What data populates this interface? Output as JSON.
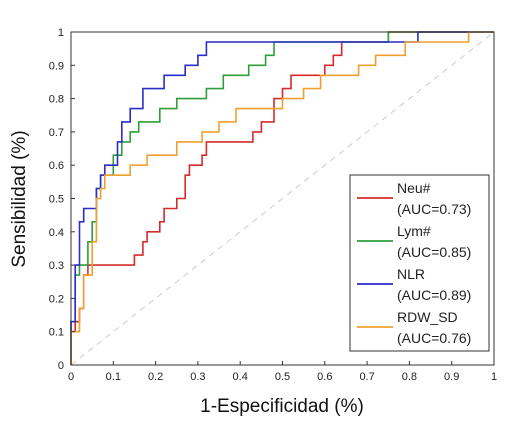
{
  "chart_data": {
    "type": "line",
    "title": "",
    "xlabel": "1-Especificidad (%)",
    "ylabel": "Sensibilidad (%)",
    "xlim": [
      0,
      1
    ],
    "ylim": [
      0,
      1
    ],
    "xticks": [
      "0",
      "0.1",
      "0.2",
      "0.3",
      "0.4",
      "0.5",
      "0.6",
      "0.7",
      "0.8",
      "0.9",
      "1"
    ],
    "yticks": [
      "0",
      "0.1",
      "0.2",
      "0.3",
      "0.4",
      "0.5",
      "0.6",
      "0.7",
      "0.8",
      "0.9",
      "1"
    ],
    "grid": false,
    "legend_position": "bottom-right",
    "reference_line": {
      "style": "dashed",
      "color": "#cccccc",
      "points": [
        [
          0,
          0
        ],
        [
          1,
          1
        ]
      ]
    },
    "series": [
      {
        "name": "Neu#",
        "auc_label": "(AUC=0.73)",
        "color": "#d62b2b",
        "points": [
          [
            0,
            0
          ],
          [
            0,
            0.1
          ],
          [
            0.01,
            0.1
          ],
          [
            0.01,
            0.13
          ],
          [
            0.02,
            0.13
          ],
          [
            0.02,
            0.17
          ],
          [
            0.03,
            0.17
          ],
          [
            0.03,
            0.27
          ],
          [
            0.04,
            0.27
          ],
          [
            0.04,
            0.3
          ],
          [
            0.15,
            0.3
          ],
          [
            0.15,
            0.33
          ],
          [
            0.17,
            0.33
          ],
          [
            0.17,
            0.37
          ],
          [
            0.18,
            0.37
          ],
          [
            0.18,
            0.4
          ],
          [
            0.21,
            0.4
          ],
          [
            0.21,
            0.43
          ],
          [
            0.22,
            0.43
          ],
          [
            0.22,
            0.47
          ],
          [
            0.25,
            0.47
          ],
          [
            0.25,
            0.5
          ],
          [
            0.27,
            0.5
          ],
          [
            0.27,
            0.57
          ],
          [
            0.28,
            0.57
          ],
          [
            0.28,
            0.6
          ],
          [
            0.31,
            0.6
          ],
          [
            0.31,
            0.63
          ],
          [
            0.32,
            0.63
          ],
          [
            0.32,
            0.67
          ],
          [
            0.43,
            0.67
          ],
          [
            0.43,
            0.7
          ],
          [
            0.45,
            0.7
          ],
          [
            0.45,
            0.73
          ],
          [
            0.48,
            0.73
          ],
          [
            0.48,
            0.8
          ],
          [
            0.5,
            0.8
          ],
          [
            0.5,
            0.83
          ],
          [
            0.52,
            0.83
          ],
          [
            0.52,
            0.87
          ],
          [
            0.6,
            0.87
          ],
          [
            0.6,
            0.9
          ],
          [
            0.62,
            0.9
          ],
          [
            0.62,
            0.93
          ],
          [
            0.64,
            0.93
          ],
          [
            0.64,
            0.97
          ],
          [
            0.75,
            0.97
          ],
          [
            0.75,
            1
          ],
          [
            1,
            1
          ]
        ]
      },
      {
        "name": "Lym#",
        "auc_label": "(AUC=0.85)",
        "color": "#2e9e3a",
        "points": [
          [
            0,
            0
          ],
          [
            0,
            0.13
          ],
          [
            0.01,
            0.13
          ],
          [
            0.01,
            0.27
          ],
          [
            0.02,
            0.27
          ],
          [
            0.02,
            0.3
          ],
          [
            0.04,
            0.3
          ],
          [
            0.04,
            0.37
          ],
          [
            0.05,
            0.37
          ],
          [
            0.05,
            0.43
          ],
          [
            0.06,
            0.43
          ],
          [
            0.06,
            0.53
          ],
          [
            0.07,
            0.53
          ],
          [
            0.07,
            0.57
          ],
          [
            0.1,
            0.57
          ],
          [
            0.1,
            0.63
          ],
          [
            0.12,
            0.63
          ],
          [
            0.12,
            0.67
          ],
          [
            0.14,
            0.67
          ],
          [
            0.14,
            0.7
          ],
          [
            0.16,
            0.7
          ],
          [
            0.16,
            0.73
          ],
          [
            0.21,
            0.73
          ],
          [
            0.21,
            0.77
          ],
          [
            0.25,
            0.77
          ],
          [
            0.25,
            0.8
          ],
          [
            0.32,
            0.8
          ],
          [
            0.32,
            0.83
          ],
          [
            0.36,
            0.83
          ],
          [
            0.36,
            0.87
          ],
          [
            0.42,
            0.87
          ],
          [
            0.42,
            0.9
          ],
          [
            0.46,
            0.9
          ],
          [
            0.46,
            0.93
          ],
          [
            0.48,
            0.93
          ],
          [
            0.48,
            0.97
          ],
          [
            0.75,
            0.97
          ],
          [
            0.75,
            1
          ],
          [
            1,
            1
          ]
        ]
      },
      {
        "name": "NLR",
        "auc_label": "(AUC=0.89)",
        "color": "#2a2ccc",
        "points": [
          [
            0,
            0
          ],
          [
            0,
            0.13
          ],
          [
            0.01,
            0.13
          ],
          [
            0.01,
            0.3
          ],
          [
            0.02,
            0.3
          ],
          [
            0.02,
            0.43
          ],
          [
            0.03,
            0.43
          ],
          [
            0.03,
            0.47
          ],
          [
            0.06,
            0.47
          ],
          [
            0.06,
            0.53
          ],
          [
            0.07,
            0.53
          ],
          [
            0.07,
            0.57
          ],
          [
            0.08,
            0.57
          ],
          [
            0.08,
            0.6
          ],
          [
            0.11,
            0.6
          ],
          [
            0.11,
            0.67
          ],
          [
            0.12,
            0.67
          ],
          [
            0.12,
            0.73
          ],
          [
            0.14,
            0.73
          ],
          [
            0.14,
            0.77
          ],
          [
            0.17,
            0.77
          ],
          [
            0.17,
            0.83
          ],
          [
            0.22,
            0.83
          ],
          [
            0.22,
            0.87
          ],
          [
            0.27,
            0.87
          ],
          [
            0.27,
            0.9
          ],
          [
            0.3,
            0.9
          ],
          [
            0.3,
            0.93
          ],
          [
            0.32,
            0.93
          ],
          [
            0.32,
            0.97
          ],
          [
            0.82,
            0.97
          ],
          [
            0.82,
            1
          ],
          [
            1,
            1
          ]
        ]
      },
      {
        "name": "RDW_SD",
        "auc_label": "(AUC=0.76)",
        "color": "#f0a030",
        "points": [
          [
            0,
            0
          ],
          [
            0,
            0.1
          ],
          [
            0.02,
            0.1
          ],
          [
            0.02,
            0.17
          ],
          [
            0.03,
            0.17
          ],
          [
            0.03,
            0.27
          ],
          [
            0.05,
            0.27
          ],
          [
            0.05,
            0.37
          ],
          [
            0.06,
            0.37
          ],
          [
            0.06,
            0.5
          ],
          [
            0.07,
            0.5
          ],
          [
            0.07,
            0.53
          ],
          [
            0.08,
            0.53
          ],
          [
            0.08,
            0.57
          ],
          [
            0.14,
            0.57
          ],
          [
            0.14,
            0.6
          ],
          [
            0.18,
            0.6
          ],
          [
            0.18,
            0.63
          ],
          [
            0.25,
            0.63
          ],
          [
            0.25,
            0.67
          ],
          [
            0.31,
            0.67
          ],
          [
            0.31,
            0.7
          ],
          [
            0.35,
            0.7
          ],
          [
            0.35,
            0.73
          ],
          [
            0.39,
            0.73
          ],
          [
            0.39,
            0.77
          ],
          [
            0.5,
            0.77
          ],
          [
            0.5,
            0.8
          ],
          [
            0.55,
            0.8
          ],
          [
            0.55,
            0.83
          ],
          [
            0.59,
            0.83
          ],
          [
            0.59,
            0.87
          ],
          [
            0.68,
            0.87
          ],
          [
            0.68,
            0.9
          ],
          [
            0.72,
            0.9
          ],
          [
            0.72,
            0.93
          ],
          [
            0.79,
            0.93
          ],
          [
            0.79,
            0.97
          ],
          [
            0.94,
            0.97
          ],
          [
            0.94,
            1
          ],
          [
            1,
            1
          ]
        ]
      }
    ]
  }
}
